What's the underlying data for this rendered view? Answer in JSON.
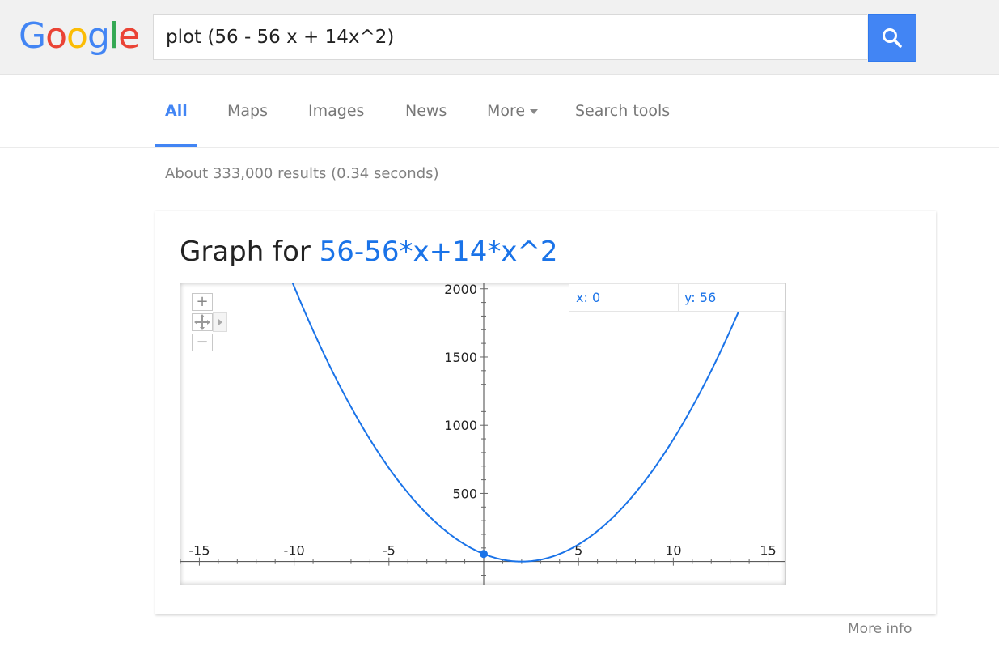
{
  "header": {
    "logo_letters": [
      {
        "ch": "G",
        "color": "#4285f4"
      },
      {
        "ch": "o",
        "color": "#ea4335"
      },
      {
        "ch": "o",
        "color": "#fbbc05"
      },
      {
        "ch": "g",
        "color": "#4285f4"
      },
      {
        "ch": "l",
        "color": "#34a853"
      },
      {
        "ch": "e",
        "color": "#ea4335"
      }
    ],
    "search_value": "plot (56 - 56 x + 14x^2)",
    "search_button_icon": "magnifier-icon"
  },
  "tabs": {
    "all": "All",
    "maps": "Maps",
    "images": "Images",
    "news": "News",
    "more": "More",
    "tools": "Search tools"
  },
  "stats": "About 333,000 results (0.34 seconds)",
  "card": {
    "title_prefix": "Graph for ",
    "title_expr": "56-56*x+14*x^2",
    "coords": {
      "x": "x: 0",
      "y": "y: 56"
    },
    "zoom_in": "+",
    "zoom_out": "−",
    "more_info": "More info"
  },
  "chart_data": {
    "type": "line",
    "function": "56-56*x+14*x^2",
    "series": [
      {
        "values_fn": "56-56*x+14*x^2",
        "color": "#1a73e8"
      }
    ],
    "xlim": [
      -16,
      16
    ],
    "ylim": [
      -180,
      2040
    ],
    "x_ticks": [
      -15,
      -10,
      -5,
      5,
      10,
      15
    ],
    "y_ticks": [
      500,
      1000,
      1500,
      2000
    ],
    "highlight_point": {
      "x": 0,
      "y": 56
    },
    "grid": false
  }
}
